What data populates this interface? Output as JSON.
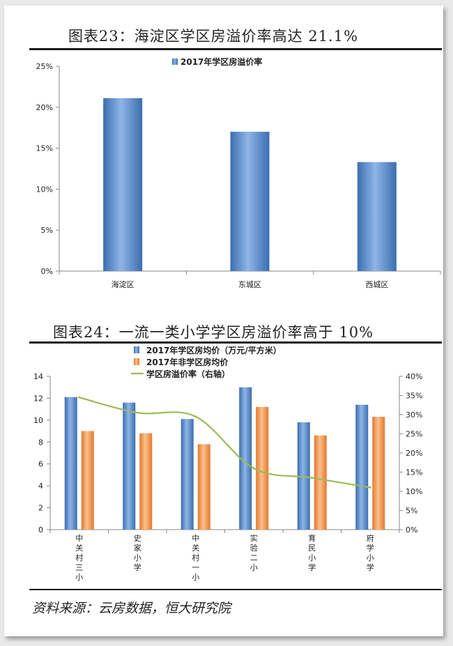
{
  "chart23": {
    "title": "图表23：海淀区学区房溢价率高达 21.1%"
  },
  "chart24": {
    "title": "图表24：一流一类小学学区房溢价率高于 10%"
  },
  "source": "资料来源：云房数据，恒大研究院",
  "colors": {
    "blue": "#4f81bd",
    "orange": "#f79646",
    "green": "#9bbb59"
  },
  "chart_data": [
    {
      "type": "bar",
      "title": "图表23：海淀区学区房溢价率高达 21.1%",
      "categories": [
        "海淀区",
        "东城区",
        "西城区"
      ],
      "series": [
        {
          "name": "2017年学区房溢价率",
          "values": [
            0.211,
            0.17,
            0.133
          ]
        }
      ],
      "ylim": [
        0,
        0.25
      ],
      "yticks": [
        "0%",
        "5%",
        "10%",
        "15%",
        "20%",
        "25%"
      ],
      "legend": "top-center",
      "grid": false
    },
    {
      "type": "bar",
      "title": "图表24：一流一类小学学区房溢价率高于 10%",
      "categories": [
        "中关村三小",
        "史家小学",
        "中关村一小",
        "实验二小",
        "育民小学",
        "府学小学"
      ],
      "series": [
        {
          "name": "2017年学区房均价（万元/平方米）",
          "type": "bar",
          "axis": "left",
          "values": [
            12.1,
            11.6,
            10.1,
            13.0,
            9.8,
            11.4
          ]
        },
        {
          "name": "2017年非学区房均价",
          "type": "bar",
          "axis": "left",
          "values": [
            9.0,
            8.8,
            7.8,
            11.2,
            8.6,
            10.3
          ]
        },
        {
          "name": "学区房溢价率（右轴）",
          "type": "line",
          "axis": "right",
          "values": [
            0.345,
            0.305,
            0.295,
            0.16,
            0.135,
            0.11
          ]
        }
      ],
      "ylim": [
        0,
        14
      ],
      "yticks": [
        "0",
        "2",
        "4",
        "6",
        "8",
        "10",
        "12",
        "14"
      ],
      "y2lim": [
        0,
        0.4
      ],
      "y2ticks": [
        "0%",
        "5%",
        "10%",
        "15%",
        "20%",
        "25%",
        "30%",
        "35%",
        "40%"
      ],
      "legend": "top-center",
      "grid": false
    }
  ]
}
